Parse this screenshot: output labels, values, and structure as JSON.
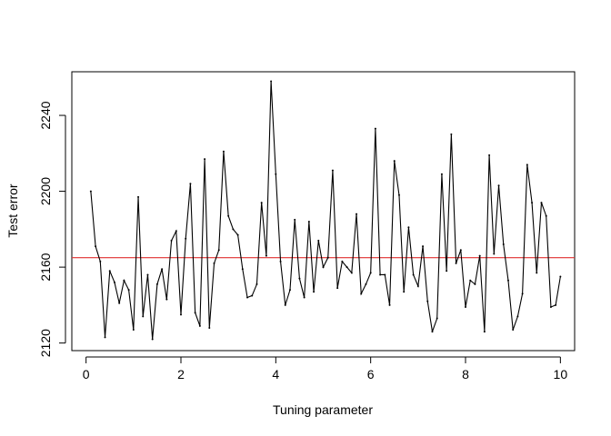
{
  "chart_data": {
    "type": "line",
    "title": "",
    "xlabel": "Tuning parameter",
    "ylabel": "Test error",
    "xlim": [
      -0.3,
      10.3
    ],
    "ylim": [
      2116,
      2263
    ],
    "x_ticks": [
      0,
      2,
      4,
      6,
      8,
      10
    ],
    "x_tick_labels": [
      "0",
      "2",
      "4",
      "6",
      "8",
      "10"
    ],
    "y_ticks": [
      2120,
      2160,
      2200,
      2240
    ],
    "y_tick_labels": [
      "2120",
      "2160",
      "2200",
      "2240"
    ],
    "grid": false,
    "line_color": "#000000",
    "reference_line": {
      "y": 2165,
      "color": "#e03030"
    },
    "series": [
      {
        "x": [
          0.1,
          0.2,
          0.3,
          0.4,
          0.5,
          0.6,
          0.7,
          0.8,
          0.9,
          1.0,
          1.1,
          1.2,
          1.3,
          1.4,
          1.5,
          1.6,
          1.7,
          1.8,
          1.9,
          2.0,
          2.1,
          2.2,
          2.3,
          2.4,
          2.5,
          2.6,
          2.7,
          2.8,
          2.9,
          3.0,
          3.1,
          3.2,
          3.3,
          3.4,
          3.5,
          3.6,
          3.7,
          3.8,
          3.9,
          4.0,
          4.1,
          4.2,
          4.3,
          4.4,
          4.5,
          4.6,
          4.7,
          4.8,
          4.9,
          5.0,
          5.1,
          5.2,
          5.3,
          5.4,
          5.5,
          5.6,
          5.7,
          5.8,
          5.9,
          6.0,
          6.1,
          6.2,
          6.3,
          6.4,
          6.5,
          6.6,
          6.7,
          6.8,
          6.9,
          7.0,
          7.1,
          7.2,
          7.3,
          7.4,
          7.5,
          7.6,
          7.7,
          7.8,
          7.9,
          8.0,
          8.1,
          8.2,
          8.3,
          8.4,
          8.5,
          8.6,
          8.7,
          8.8,
          8.9,
          9.0,
          9.1,
          9.2,
          9.3,
          9.4,
          9.5,
          9.6,
          9.7,
          9.8,
          9.9,
          10.0
        ],
        "y": [
          2200,
          2171,
          2163,
          2123,
          2158,
          2152,
          2141,
          2153,
          2148,
          2127,
          2197,
          2134,
          2156,
          2122,
          2151,
          2159,
          2143,
          2174,
          2179,
          2135,
          2175,
          2204,
          2136,
          2129,
          2217,
          2128,
          2162,
          2169,
          2221,
          2187,
          2180,
          2177,
          2159,
          2144,
          2145,
          2151,
          2194,
          2166,
          2258,
          2209,
          2163,
          2140,
          2148,
          2185,
          2154,
          2144,
          2184,
          2147,
          2174,
          2160,
          2165,
          2211,
          2149,
          2163,
          2160,
          2157,
          2188,
          2146,
          2151,
          2157,
          2233,
          2156,
          2156,
          2140,
          2216,
          2198,
          2147,
          2181,
          2156,
          2150,
          2171,
          2142,
          2126,
          2133,
          2209,
          2158,
          2230,
          2162,
          2169,
          2139,
          2153,
          2151,
          2166,
          2126,
          2219,
          2167,
          2203,
          2172,
          2153,
          2127,
          2134,
          2146,
          2214,
          2194,
          2157,
          2194,
          2187,
          2139,
          2140,
          2155
        ]
      }
    ]
  }
}
